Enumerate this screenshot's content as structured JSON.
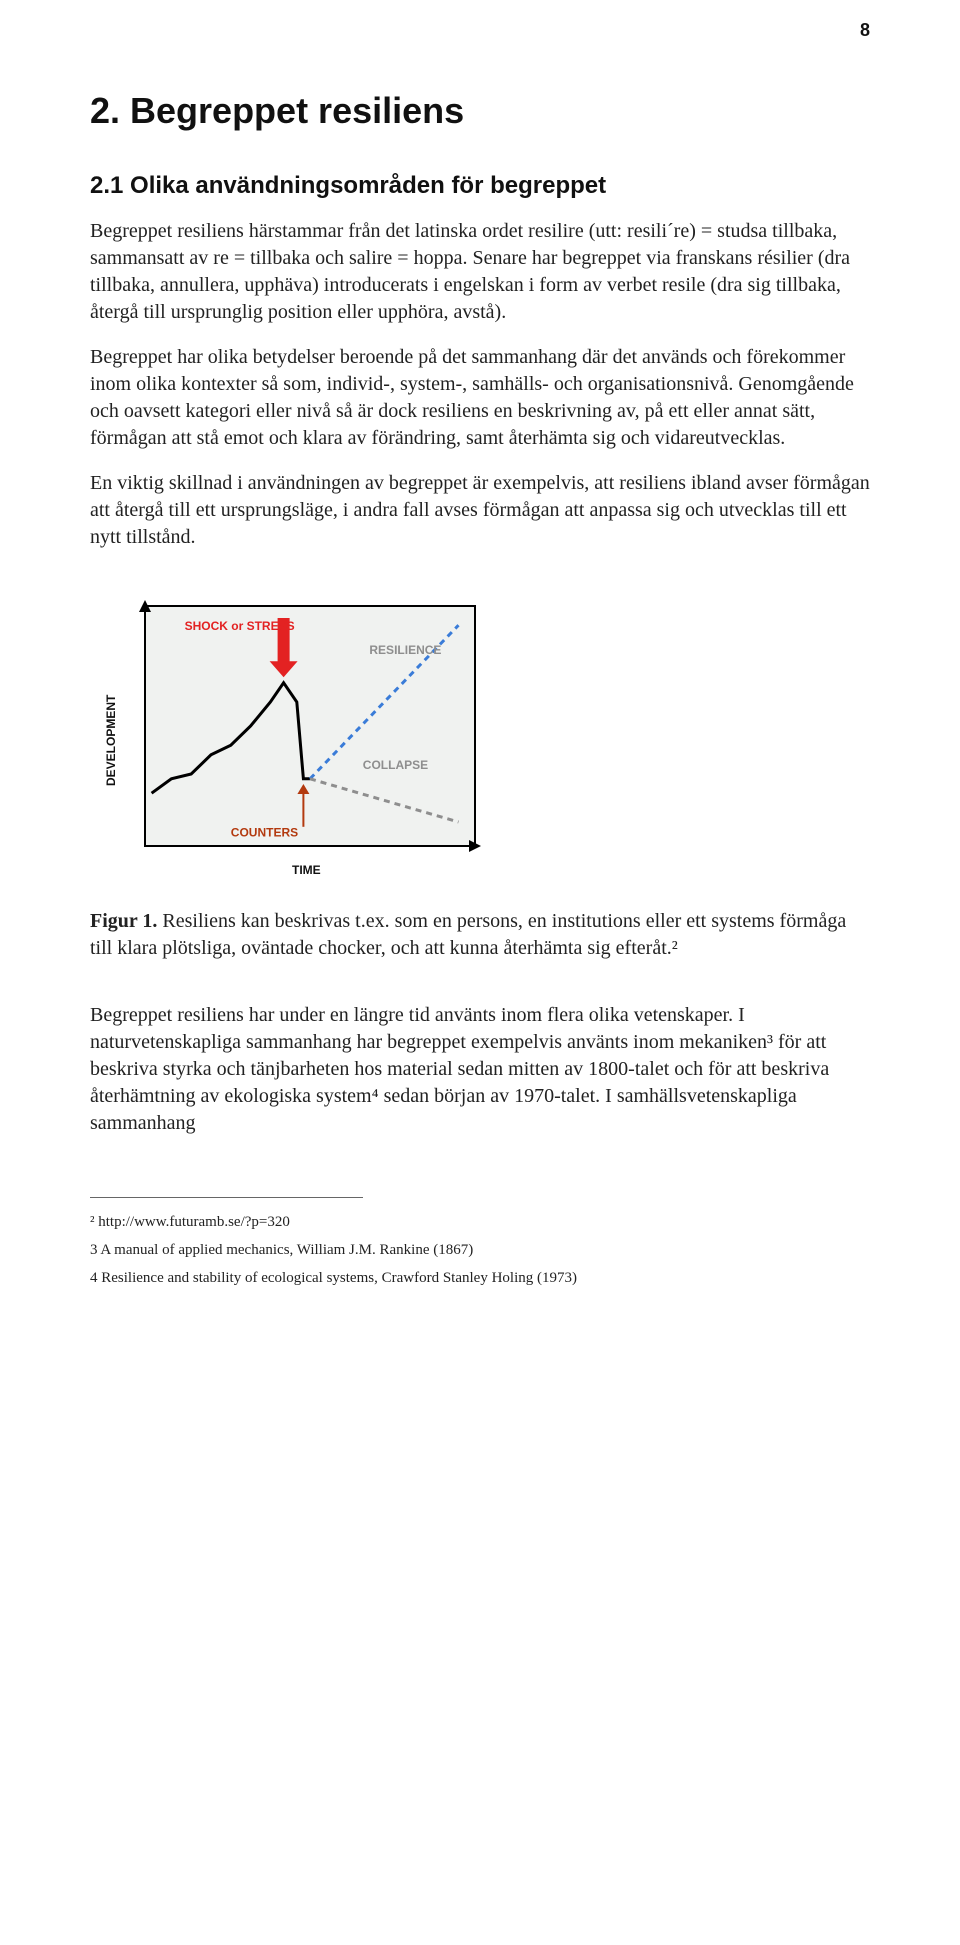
{
  "page_number": "8",
  "chapter_title": "2. Begreppet resiliens",
  "section_title": "2.1 Olika användningsområden för begreppet",
  "paragraphs": {
    "p1": "Begreppet resiliens härstammar från det latinska ordet resilire (utt: resili´re) = studsa tillbaka, sammansatt av re = tillbaka och salire = hoppa. Senare har begreppet via franskans résilier (dra tillbaka, annullera, upphäva) introducerats i engelskan i form av verbet resile (dra sig tillbaka, återgå till ursprunglig position eller upphöra, avstå).",
    "p2": "Begreppet har olika betydelser beroende på det sammanhang där det används och förekommer inom olika kontexter så som, individ-, system-, samhälls- och organisationsnivå. Genomgående och oavsett kategori eller nivå så är dock resiliens en beskrivning av, på ett eller annat sätt, förmågan att stå emot och klara av förändring, samt återhämta sig och vidareutvecklas.",
    "p3": "En viktig skillnad i användningen av begreppet är exempelvis, att resiliens ibland avser förmågan att återgå till ett ursprungsläge, i andra fall avses förmågan att anpassa sig och utvecklas till ett nytt tillstånd.",
    "p4": "Begreppet resiliens har under en längre tid använts inom flera olika vetenskaper. I naturvetenskapliga sammanhang har begreppet exempelvis använts inom mekaniken³ för att beskriva styrka och tänjbarheten hos material sedan mitten av 1800-talet och för att beskriva återhämtning av ekologiska system⁴ sedan början av 1970-talet. I samhällsvetenskapliga sammanhang"
  },
  "figure": {
    "type": "line",
    "labels": {
      "y_axis": "DEVELOPMENT",
      "x_axis": "TIME",
      "shock": "SHOCK or STRESS",
      "resilience": "RESILIENCE",
      "collapse": "COLLAPSE",
      "counters": "COUNTERS"
    },
    "colors": {
      "background": "#f0f2f0",
      "axis": "#000000",
      "trajectory": "#000000",
      "resilience_line": "#3a7cd8",
      "collapse_line": "#8e8e8e",
      "shock_arrow": "#e32222",
      "counters_arrow": "#b33a0f",
      "shock_text": "#e32222",
      "resilience_text": "#8e8e8e",
      "collapse_text": "#8e8e8e",
      "counters_text": "#b33a0f",
      "axis_label_text": "#111111"
    },
    "typography": {
      "label_fontsize_pt": 12,
      "label_fontweight": "bold"
    },
    "trajectory_points": [
      [
        0.02,
        0.78
      ],
      [
        0.08,
        0.72
      ],
      [
        0.14,
        0.7
      ],
      [
        0.2,
        0.62
      ],
      [
        0.26,
        0.58
      ],
      [
        0.32,
        0.5
      ],
      [
        0.38,
        0.4
      ],
      [
        0.42,
        0.32
      ],
      [
        0.46,
        0.4
      ],
      [
        0.48,
        0.72
      ],
      [
        0.5,
        0.72
      ]
    ],
    "resilience_dash_points": [
      [
        0.5,
        0.72
      ],
      [
        0.95,
        0.08
      ]
    ],
    "collapse_dash_points": [
      [
        0.5,
        0.72
      ],
      [
        0.95,
        0.9
      ]
    ],
    "line_widths": {
      "trajectory": 3,
      "dash": 3
    },
    "dash_pattern": "6,5",
    "plot_aspect_w": 330,
    "plot_aspect_h": 240
  },
  "figure_caption": {
    "label": "Figur 1.",
    "text": " Resiliens kan beskrivas t.ex. som en persons, en institutions eller ett systems förmåga till klara plötsliga, oväntade chocker, och att kunna återhämta sig efteråt.²"
  },
  "footnotes": {
    "f2": "² http://www.futuramb.se/?p=320",
    "f3": "3 A manual of applied mechanics, William J.M. Rankine (1867)",
    "f4": "4 Resilience and stability of ecological systems, Crawford Stanley Holing (1973)"
  }
}
